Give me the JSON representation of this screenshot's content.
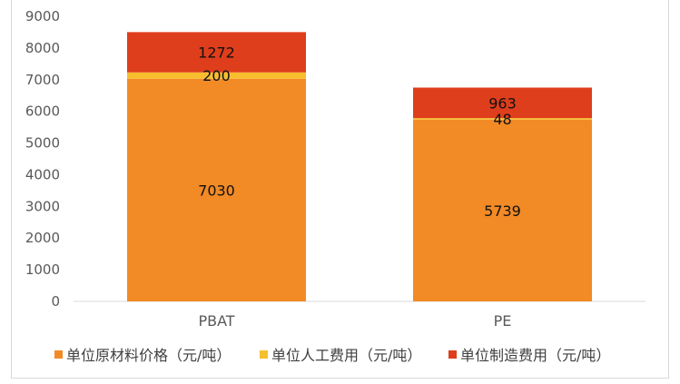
{
  "chart_data": {
    "type": "bar",
    "stacked": true,
    "categories": [
      "PBAT",
      "PE"
    ],
    "series": [
      {
        "name": "单位原材料价格（元/吨）",
        "values": [
          7030,
          5739
        ],
        "color": "#F28A26"
      },
      {
        "name": "单位人工费用（元/吨）",
        "values": [
          200,
          48
        ],
        "color": "#F7BE2E"
      },
      {
        "name": "单位制造费用（元/吨）",
        "values": [
          1272,
          963
        ],
        "color": "#DE3E1C"
      }
    ],
    "ylim": [
      0,
      9000
    ],
    "yticks": [
      "0",
      "1000",
      "2000",
      "3000",
      "4000",
      "5000",
      "6000",
      "7000",
      "8000",
      "9000"
    ],
    "legend_position": "bottom",
    "grid": false
  }
}
